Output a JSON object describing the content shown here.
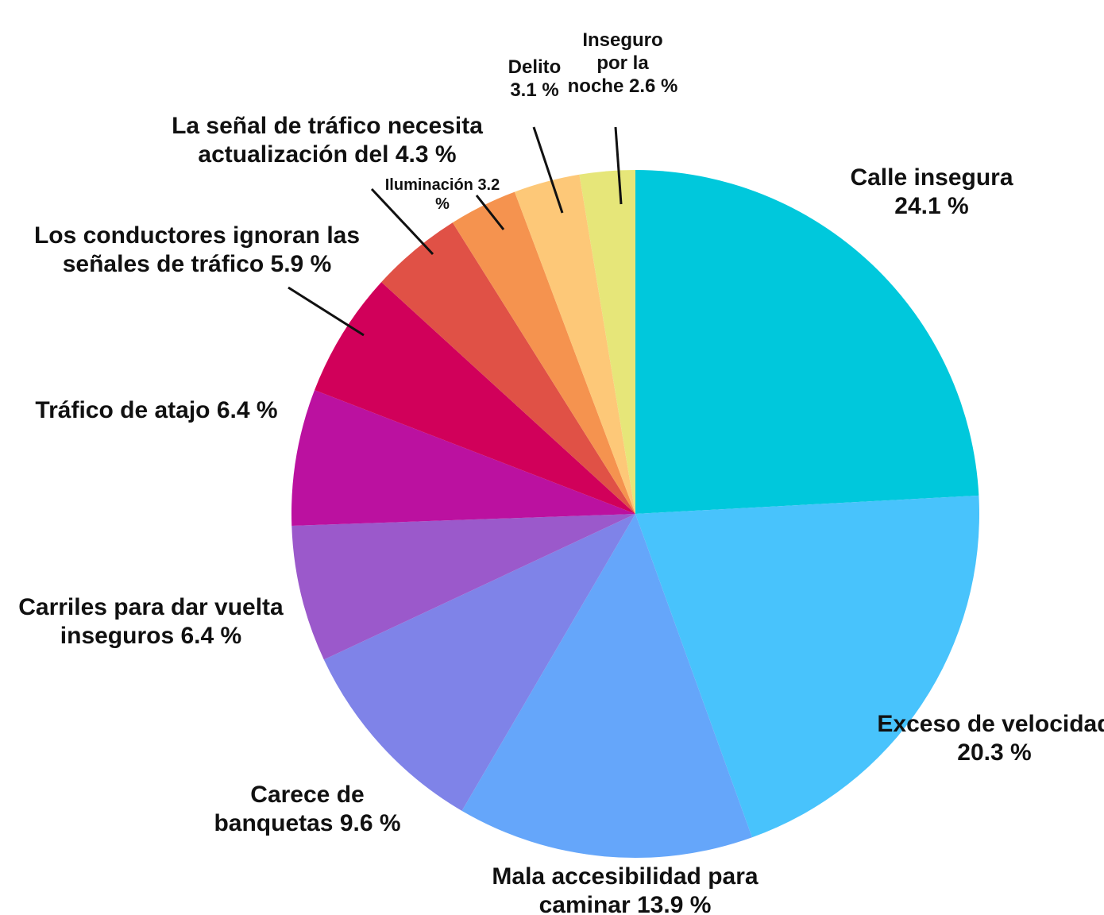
{
  "chart_data": {
    "type": "pie",
    "categories": [
      "Calle insegura",
      "Exceso de velocidad",
      "Mala accesibilidad para caminar",
      "Carece de banquetas",
      "Carriles para dar vuelta inseguros",
      "Tráfico de atajo",
      "Los conductores ignoran las señales de tráfico",
      "La señal de tráfico necesita actualización del",
      "Iluminación",
      "Delito",
      "Inseguro por la noche"
    ],
    "values": [
      24.1,
      20.3,
      13.9,
      9.6,
      6.4,
      6.4,
      5.9,
      4.3,
      3.2,
      3.1,
      2.6
    ],
    "value_labels": [
      "24.1 %",
      "20.3 %",
      "13.9 %",
      "9.6 %",
      "6.4 %",
      "6.4 %",
      "5.9 %",
      "4.3 %",
      "3.2 %",
      "3.1 %",
      "2.6 %"
    ],
    "colors": [
      "#00c8dc",
      "#48c3fc",
      "#65a6fa",
      "#7f83e8",
      "#9b59cb",
      "#bb11a0",
      "#d1005a",
      "#e05146",
      "#f5934f",
      "#fdc878",
      "#e6e679"
    ]
  }
}
